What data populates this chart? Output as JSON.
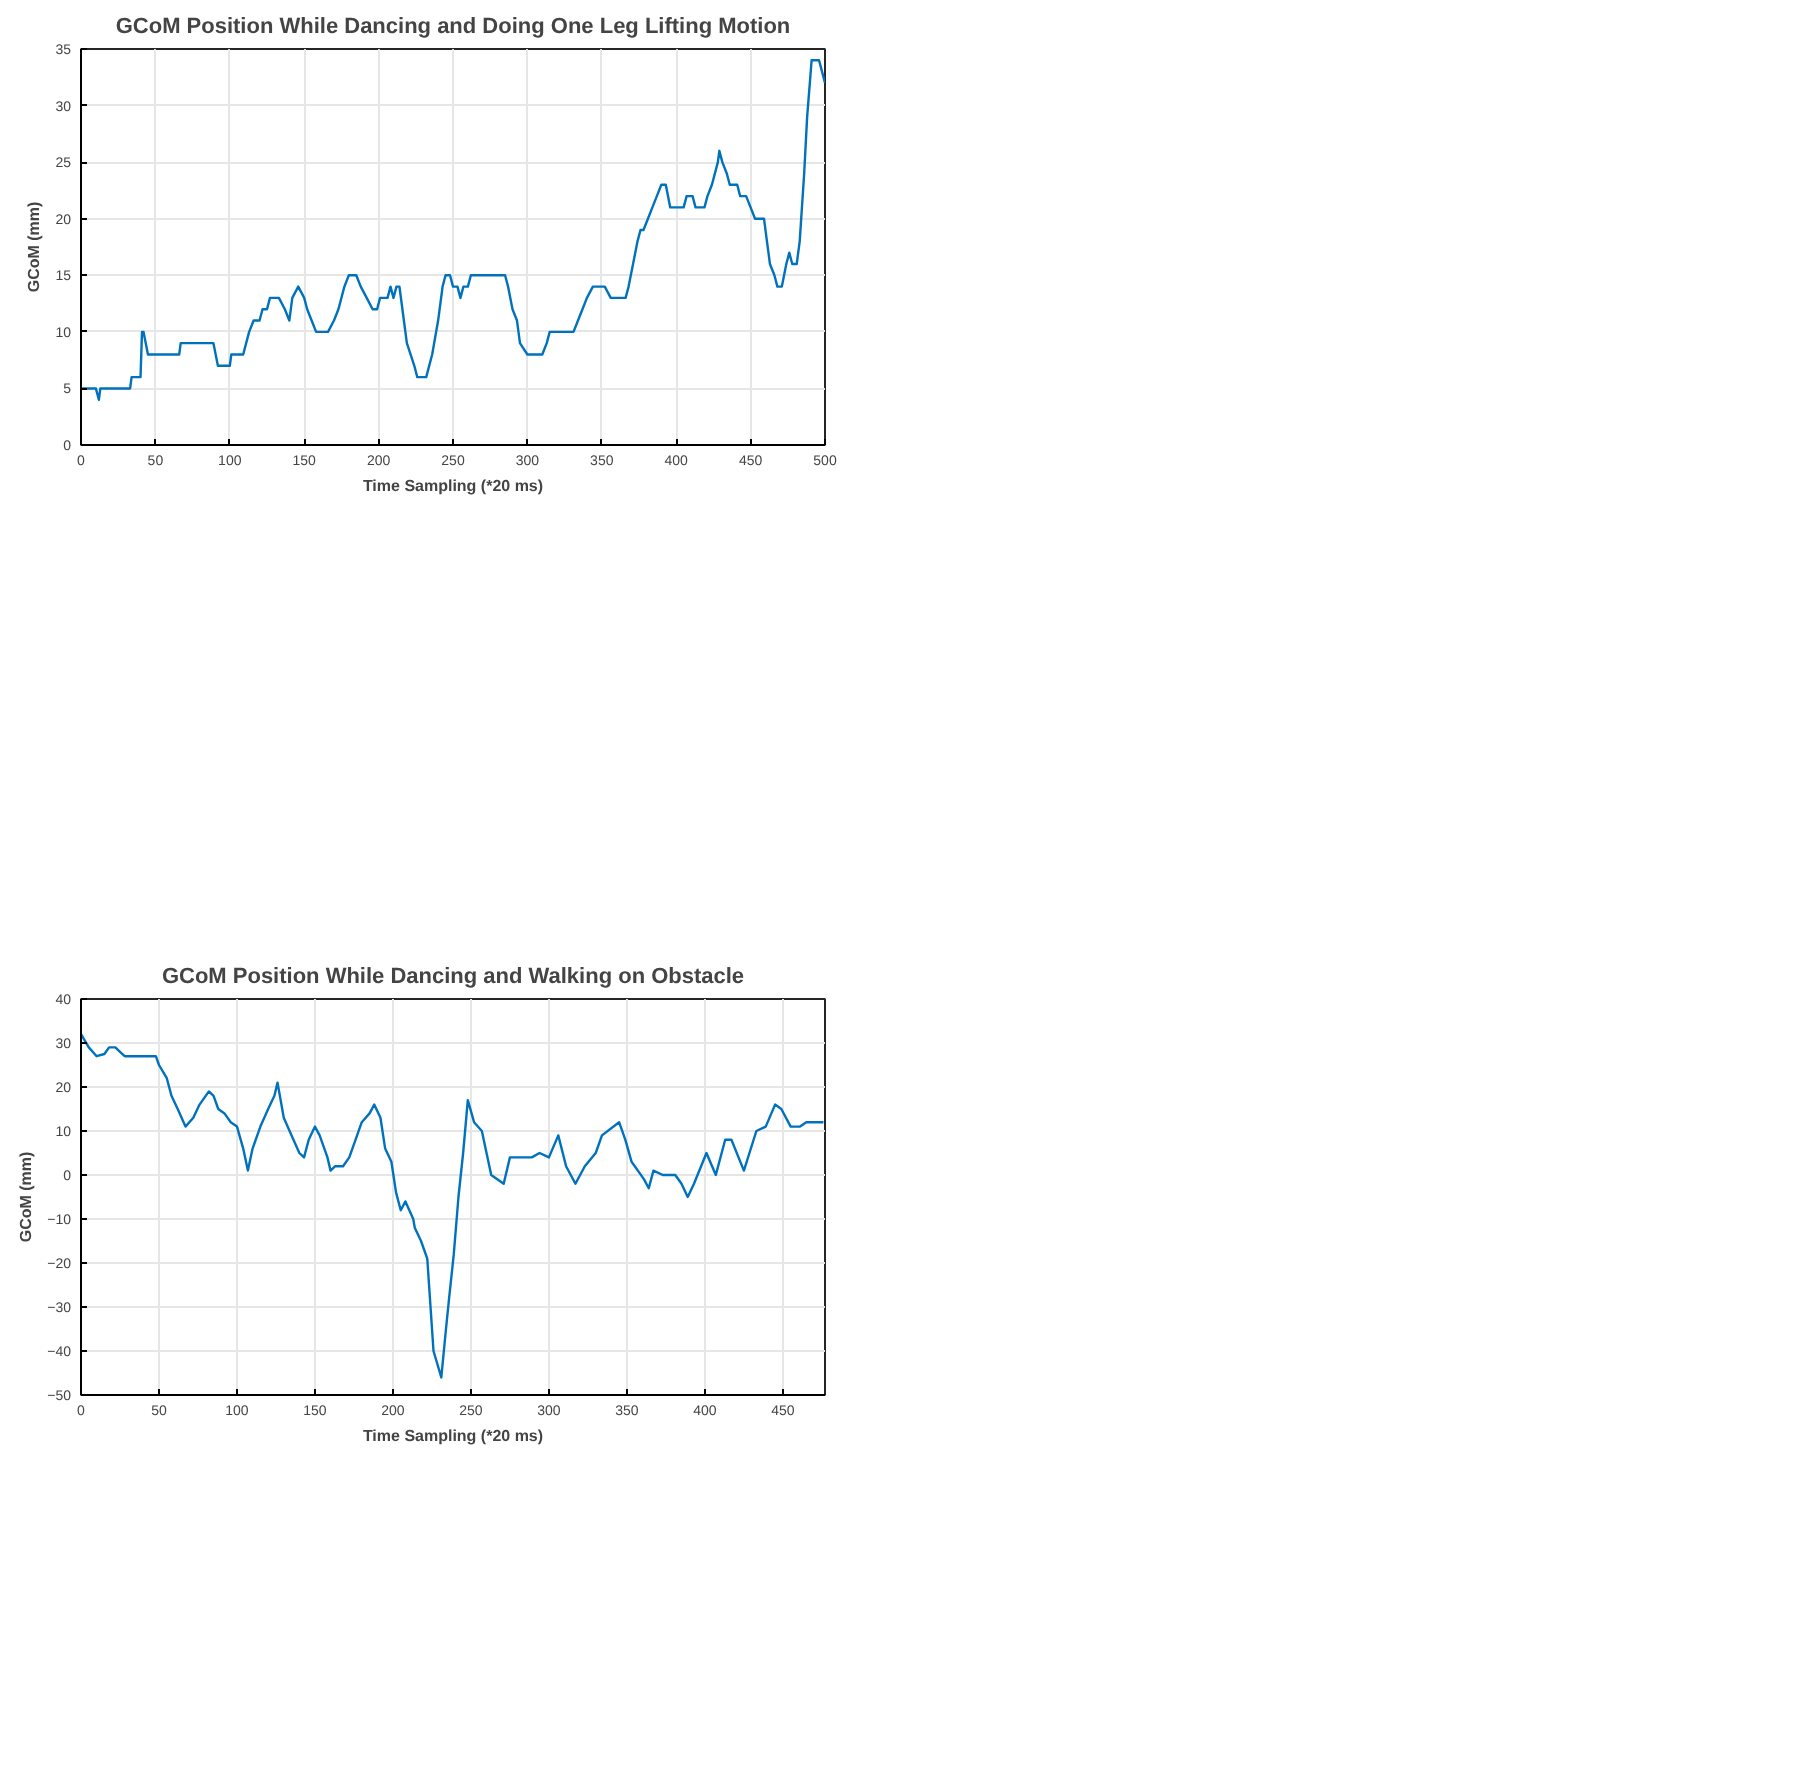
{
  "chart_data": [
    {
      "type": "line",
      "title": "GCoM Position While Dancing and Doing One Leg Lifting Motion",
      "xlabel": "Time Sampling (*20 ms)",
      "ylabel": "GCoM (mm)",
      "xlim": [
        0,
        500
      ],
      "ylim": [
        0,
        35
      ],
      "xticks": [
        0,
        50,
        100,
        150,
        200,
        250,
        300,
        350,
        400,
        450,
        500
      ],
      "yticks": [
        0,
        5,
        10,
        15,
        20,
        25,
        30,
        35
      ],
      "grid": true,
      "line_style": "solid",
      "series": [
        {
          "color": "#0072bd",
          "x": [
            0,
            10,
            12,
            13,
            33,
            34,
            40,
            41,
            42,
            45,
            66,
            67,
            89,
            92,
            100,
            101,
            109,
            111,
            113,
            116,
            120,
            122,
            125,
            127,
            133,
            137,
            140,
            142,
            146,
            150,
            152,
            155,
            158,
            166,
            170,
            173,
            177,
            180,
            185,
            188,
            192,
            196,
            199,
            201,
            206,
            208,
            210,
            212,
            214,
            216,
            219,
            224,
            226,
            232,
            236,
            240,
            243,
            245,
            248,
            250,
            253,
            255,
            257,
            260,
            262,
            285,
            287,
            290,
            293,
            295,
            300,
            310,
            313,
            315,
            331,
            334,
            337,
            340,
            344,
            352,
            356,
            366,
            368,
            371,
            374,
            376,
            378,
            381,
            384,
            387,
            390,
            393,
            396,
            399,
            405,
            407,
            411,
            413,
            419,
            421,
            424,
            428,
            429,
            431,
            434,
            436,
            441,
            443,
            447,
            450,
            453,
            459,
            461,
            463,
            466,
            468,
            471,
            474,
            476,
            478,
            481,
            483,
            486,
            488,
            491,
            496,
            498,
            500
          ],
          "values": [
            5,
            5,
            4,
            5,
            5,
            6,
            6,
            10,
            10,
            8,
            8,
            9,
            9,
            7,
            7,
            8,
            8,
            9,
            10,
            11,
            11,
            12,
            12,
            13,
            13,
            12,
            11,
            13,
            14,
            13,
            12,
            11,
            10,
            10,
            11,
            12,
            14,
            15,
            15,
            14,
            13,
            12,
            12,
            13,
            13,
            14,
            13,
            14,
            14,
            12,
            9,
            7,
            6,
            6,
            8,
            11,
            14,
            15,
            15,
            14,
            14,
            13,
            14,
            14,
            15,
            15,
            14,
            12,
            11,
            9,
            8,
            8,
            9,
            10,
            10,
            11,
            12,
            13,
            14,
            14,
            13,
            13,
            14,
            16,
            18,
            19,
            19,
            20,
            21,
            22,
            23,
            23,
            21,
            21,
            21,
            22,
            22,
            21,
            21,
            22,
            23,
            25,
            26,
            25,
            24,
            23,
            23,
            22,
            22,
            21,
            20,
            20,
            18,
            16,
            15,
            14,
            14,
            16,
            17,
            16,
            16,
            18,
            24,
            29,
            34,
            34,
            33,
            32
          ]
        }
      ]
    },
    {
      "type": "line",
      "title": "GCoM Position While Dancing and Walking on Obstacle",
      "xlabel": "Time Sampling (*20 ms)",
      "ylabel": "GCoM (mm)",
      "xlim": [
        0,
        477
      ],
      "ylim": [
        -50,
        40
      ],
      "xticks": [
        0,
        50,
        100,
        150,
        200,
        250,
        300,
        350,
        400,
        450
      ],
      "yticks": [
        -50,
        -40,
        -30,
        -20,
        -10,
        0,
        10,
        20,
        30,
        40
      ],
      "grid": true,
      "line_style": "solid",
      "series": [
        {
          "color": "#0072bd",
          "x": [
            0,
            5,
            10,
            15,
            18,
            22,
            25,
            28,
            48,
            50,
            55,
            58,
            62,
            67,
            72,
            76,
            82,
            85,
            88,
            92,
            96,
            100,
            104,
            107,
            110,
            115,
            120,
            124,
            126,
            130,
            135,
            140,
            143,
            146,
            150,
            153,
            158,
            160,
            163,
            168,
            172,
            176,
            180,
            185,
            188,
            192,
            195,
            199,
            202,
            205,
            208,
            213,
            214,
            218,
            222,
            226,
            231,
            234,
            236,
            239,
            242,
            245,
            248,
            252,
            257,
            260,
            263,
            271,
            275,
            289,
            294,
            300,
            306,
            311,
            317,
            323,
            330,
            334,
            345,
            349,
            353,
            361,
            364,
            367,
            373,
            381,
            385,
            389,
            393,
            401,
            407,
            413,
            417,
            425,
            433,
            439,
            445,
            449,
            455,
            461,
            465,
            468,
            476
          ],
          "values": [
            32,
            29,
            27,
            27.5,
            29,
            29,
            28,
            27,
            27,
            25,
            22,
            18,
            15,
            11,
            13,
            16,
            19,
            18,
            15,
            14,
            12,
            11,
            6,
            1,
            6,
            11,
            15,
            18,
            21,
            13,
            9,
            5,
            4,
            8,
            11,
            9,
            4,
            1,
            2,
            2,
            4,
            8,
            12,
            14,
            16,
            13,
            6,
            3,
            -4,
            -8,
            -6,
            -10,
            -12,
            -15,
            -19,
            -40,
            -46,
            -35,
            -28,
            -18,
            -5,
            5,
            17,
            12,
            10,
            5,
            0,
            -2,
            4,
            4,
            5,
            4,
            9,
            2,
            -2,
            2,
            5,
            9,
            12,
            8,
            3,
            -1,
            -3,
            1,
            0,
            0,
            -2,
            -5,
            -2,
            5,
            0,
            8,
            8,
            1,
            10,
            11,
            16,
            15,
            11,
            11,
            12,
            12,
            12
          ]
        }
      ]
    }
  ]
}
